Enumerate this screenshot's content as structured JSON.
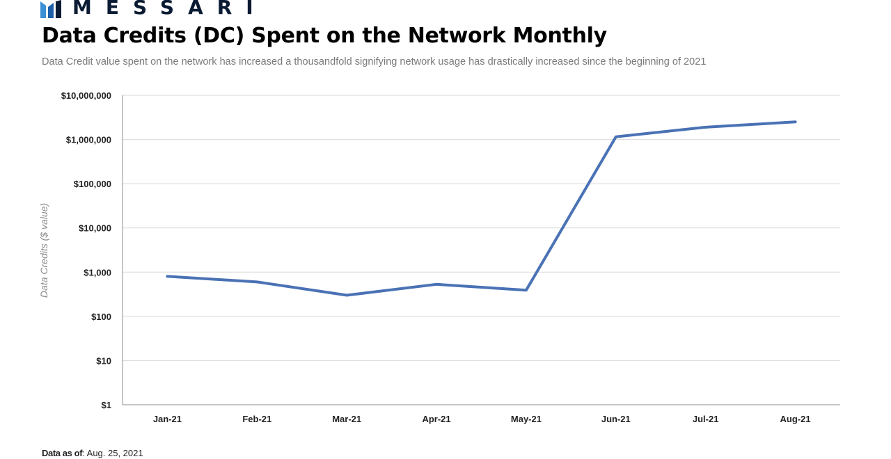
{
  "brand": {
    "name": "MESSARI",
    "color": "#0b1b33",
    "mark_color": "#3b8fd4"
  },
  "footer": {
    "label": "Data as of",
    "date": ": Aug. 25, 2021"
  },
  "chart_data": {
    "type": "line",
    "title": "Data Credits (DC) Spent on the Network Monthly",
    "subtitle": "Data Credit value spent  on the network has increased a thousandfold signifying network usage has drastically increased since the beginning of 2021",
    "xlabel": "",
    "ylabel": "Data Credits ($ value)",
    "yscale": "log",
    "ylim": [
      1,
      10000000
    ],
    "yticks": [
      1,
      10,
      100,
      1000,
      10000,
      100000,
      1000000,
      10000000
    ],
    "ytick_labels": [
      "$1",
      "$10",
      "$100",
      "$1,000",
      "$10,000",
      "$100,000",
      "$1,000,000",
      "$10,000,000"
    ],
    "categories": [
      "Jan-21",
      "Feb-21",
      "Mar-21",
      "Apr-21",
      "May-21",
      "Jun-21",
      "Jul-21",
      "Aug-21"
    ],
    "series": [
      {
        "values": [
          800,
          600,
          300,
          530,
          390,
          1150000,
          1900000,
          2500000
        ],
        "color": "#4a72b5"
      }
    ],
    "grid": true,
    "legend": "none"
  }
}
